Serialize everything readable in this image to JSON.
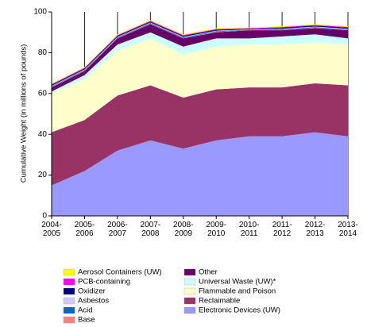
{
  "chart_data": {
    "type": "stacked-area",
    "y_label": "Cumulative Weight (in millions of pounds)",
    "categories": [
      "2004-2005",
      "2005-2006",
      "2006-2007",
      "2007-2008",
      "2008-2009",
      "2009-2010",
      "2010-2011",
      "2011-2012",
      "2012-2013",
      "2013-2014"
    ],
    "series": [
      {
        "name": "Electronic Devices (UW)",
        "color": "#9999ff",
        "values": [
          15,
          22,
          32,
          37,
          33,
          37,
          39,
          39,
          41,
          39
        ]
      },
      {
        "name": "Reclaimable",
        "color": "#993366",
        "values": [
          26,
          25,
          27,
          27,
          25,
          25,
          24,
          24,
          24,
          25
        ]
      },
      {
        "name": "Flammable and Poison",
        "color": "#ffffcc",
        "values": [
          19,
          20,
          22,
          23,
          21,
          21,
          21,
          21,
          20,
          20
        ]
      },
      {
        "name": "Universal Waste (UW)*",
        "color": "#ccffff",
        "values": [
          1,
          2,
          3,
          3,
          4,
          4,
          3,
          4,
          4,
          3
        ]
      },
      {
        "name": "Other",
        "color": "#660066",
        "values": [
          2,
          2,
          3,
          4,
          4,
          3,
          4,
          3,
          3,
          4
        ]
      },
      {
        "name": "Base",
        "color": "#ff8080",
        "values": [
          0.2,
          0.2,
          0.2,
          0.2,
          0.2,
          0.2,
          0.1,
          0.2,
          0.2,
          0.2
        ]
      },
      {
        "name": "Acid",
        "color": "#0066cc",
        "values": [
          0.3,
          0.3,
          0.3,
          0.3,
          0.3,
          0.3,
          0.2,
          0.3,
          0.3,
          0.3
        ]
      },
      {
        "name": "Asbestos",
        "color": "#ccccff",
        "values": [
          0.3,
          0.3,
          0.3,
          0.3,
          0.3,
          0.3,
          0.2,
          0.3,
          0.3,
          0.3
        ]
      },
      {
        "name": "Oxidizer",
        "color": "#000080",
        "values": [
          0.5,
          0.5,
          0.5,
          0.5,
          0.5,
          0.5,
          0.3,
          0.5,
          0.5,
          0.5
        ]
      },
      {
        "name": "PCB-containing",
        "color": "#ff00ff",
        "values": [
          0.3,
          0.3,
          0.3,
          0.3,
          0.3,
          0.3,
          0.2,
          0.3,
          0.3,
          0.3
        ]
      },
      {
        "name": "Aerosol Containers (UW)",
        "color": "#ffff00",
        "values": [
          0.4,
          0.4,
          0.4,
          0.4,
          0.4,
          0.4,
          0.3,
          0.4,
          0.4,
          0.4
        ]
      }
    ],
    "ylim": [
      0,
      100
    ],
    "yticks": [
      0,
      20,
      40,
      60,
      80,
      100
    ],
    "grid": "x"
  }
}
